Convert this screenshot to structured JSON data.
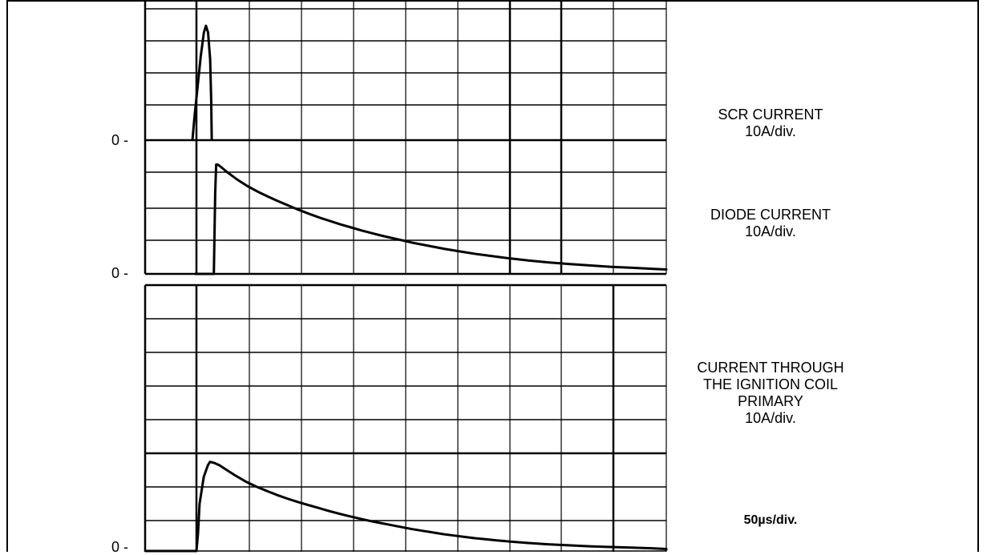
{
  "chart_data": [
    {
      "type": "line",
      "series": [
        {
          "name": "SCR CURRENT",
          "x": [
            0,
            2,
            5,
            8,
            11,
            13,
            15,
            17,
            18,
            18.5,
            18.5
          ],
          "y": [
            0,
            0.7,
            1.6,
            2.5,
            3.2,
            3.4,
            3.2,
            2.4,
            1.2,
            0,
            0
          ]
        }
      ],
      "ylabel": "SCR CURRENT",
      "yunits": "10A/div.",
      "zero_label": "0 -",
      "divisions": {
        "x": 10,
        "y": 3.3
      }
    },
    {
      "type": "line",
      "series": [
        {
          "name": "DIODE CURRENT",
          "x": [
            0,
            18.2,
            19.5,
            20.5,
            22,
            25,
            30,
            40,
            50,
            60,
            70,
            80,
            90,
            100,
            110,
            120,
            130,
            140,
            150,
            160,
            170,
            180,
            190,
            200,
            210,
            220,
            230,
            240,
            250,
            260,
            270,
            280,
            290,
            300,
            320,
            340,
            360,
            380,
            400,
            420,
            440,
            460,
            480,
            500
          ],
          "y": [
            0,
            0,
            2.4,
            3.25,
            3.25,
            3.18,
            3.05,
            2.82,
            2.62,
            2.45,
            2.3,
            2.16,
            2.03,
            1.9,
            1.78,
            1.67,
            1.57,
            1.47,
            1.38,
            1.29,
            1.21,
            1.13,
            1.06,
            0.99,
            0.92,
            0.86,
            0.8,
            0.74,
            0.69,
            0.64,
            0.59,
            0.55,
            0.51,
            0.47,
            0.4,
            0.34,
            0.29,
            0.25,
            0.21,
            0.18,
            0.15,
            0.13,
            0.12,
            0.11
          ]
        }
      ],
      "ylabel": "DIODE CURRENT",
      "yunits": "10A/div.",
      "zero_label": "0 -",
      "divisions": {
        "x": 10,
        "y": 3.5
      }
    },
    {
      "type": "line",
      "series": [
        {
          "name": "CURRENT THROUGH THE IGNITION COIL PRIMARY",
          "x": [
            0,
            3,
            4.5,
            6,
            10,
            14,
            16,
            20,
            25,
            30,
            40,
            50,
            60,
            70,
            80,
            90,
            100,
            110,
            120,
            130,
            140,
            150,
            160,
            170,
            180,
            190,
            200,
            210,
            220,
            230,
            240,
            250,
            260,
            270,
            280,
            290,
            300,
            320,
            340,
            360,
            380,
            400,
            420,
            440,
            460,
            480,
            500
          ],
          "y": [
            0,
            0,
            0.5,
            1.4,
            2.2,
            2.55,
            2.65,
            2.62,
            2.55,
            2.45,
            2.25,
            2.07,
            1.92,
            1.79,
            1.67,
            1.56,
            1.46,
            1.37,
            1.28,
            1.19,
            1.11,
            1.03,
            0.96,
            0.89,
            0.83,
            0.77,
            0.71,
            0.65,
            0.6,
            0.55,
            0.5,
            0.46,
            0.42,
            0.38,
            0.35,
            0.32,
            0.29,
            0.24,
            0.2,
            0.17,
            0.14,
            0.12,
            0.1,
            0.08,
            0.06,
            0.04,
            0.02
          ]
        }
      ],
      "ylabel": "CURRENT THROUGH\nTHE IGNITION COIL\nPRIMARY",
      "yunits": "10A/div.",
      "zero_label": "0 -",
      "divisions": {
        "x": 10,
        "y": 8
      }
    }
  ],
  "labels": {
    "scr_title": "SCR CURRENT",
    "scr_units": "10A/div.",
    "diode_title": "DIODE CURRENT",
    "diode_units": "10A/div.",
    "coil_line1": "CURRENT THROUGH",
    "coil_line2": "THE IGNITION COIL",
    "coil_line3": "PRIMARY",
    "coil_units": "10A/div.",
    "timebase": "50µs/div.",
    "zero_scr": "0 -",
    "zero_diode": "0 -",
    "zero_coil": "0 -"
  },
  "colors": {
    "trace": "#000000",
    "grid": "#000000",
    "background": "#ffffff"
  }
}
